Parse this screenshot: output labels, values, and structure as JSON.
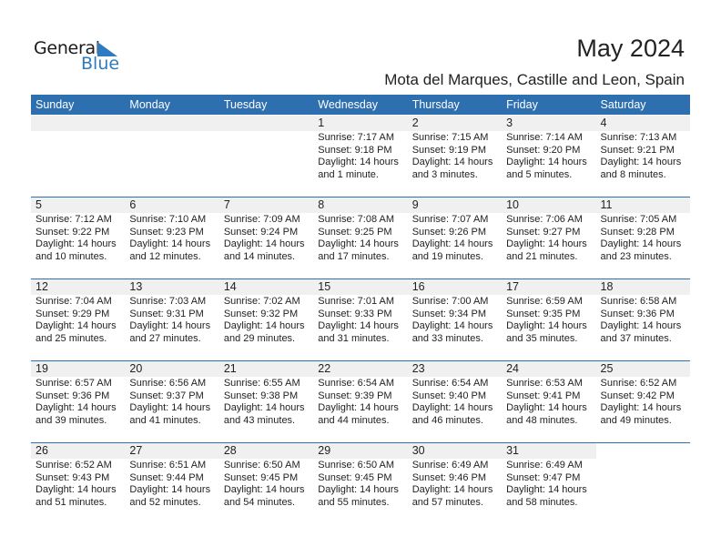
{
  "logo": {
    "text_general": "General",
    "text_blue": "Blue"
  },
  "header": {
    "title": "May 2024",
    "subtitle": "Mota del Marques, Castille and Leon, Spain"
  },
  "colors": {
    "header_bg": "#2e6fb0",
    "day_band": "#f0f0f0",
    "logo_blue": "#2e7bbf"
  },
  "weekdays": [
    "Sunday",
    "Monday",
    "Tuesday",
    "Wednesday",
    "Thursday",
    "Friday",
    "Saturday"
  ],
  "weeks": [
    [
      null,
      null,
      null,
      {
        "day": "1",
        "sunrise": "Sunrise: 7:17 AM",
        "sunset": "Sunset: 9:18 PM",
        "daylight1": "Daylight: 14 hours",
        "daylight2": "and 1 minute."
      },
      {
        "day": "2",
        "sunrise": "Sunrise: 7:15 AM",
        "sunset": "Sunset: 9:19 PM",
        "daylight1": "Daylight: 14 hours",
        "daylight2": "and 3 minutes."
      },
      {
        "day": "3",
        "sunrise": "Sunrise: 7:14 AM",
        "sunset": "Sunset: 9:20 PM",
        "daylight1": "Daylight: 14 hours",
        "daylight2": "and 5 minutes."
      },
      {
        "day": "4",
        "sunrise": "Sunrise: 7:13 AM",
        "sunset": "Sunset: 9:21 PM",
        "daylight1": "Daylight: 14 hours",
        "daylight2": "and 8 minutes."
      }
    ],
    [
      {
        "day": "5",
        "sunrise": "Sunrise: 7:12 AM",
        "sunset": "Sunset: 9:22 PM",
        "daylight1": "Daylight: 14 hours",
        "daylight2": "and 10 minutes."
      },
      {
        "day": "6",
        "sunrise": "Sunrise: 7:10 AM",
        "sunset": "Sunset: 9:23 PM",
        "daylight1": "Daylight: 14 hours",
        "daylight2": "and 12 minutes."
      },
      {
        "day": "7",
        "sunrise": "Sunrise: 7:09 AM",
        "sunset": "Sunset: 9:24 PM",
        "daylight1": "Daylight: 14 hours",
        "daylight2": "and 14 minutes."
      },
      {
        "day": "8",
        "sunrise": "Sunrise: 7:08 AM",
        "sunset": "Sunset: 9:25 PM",
        "daylight1": "Daylight: 14 hours",
        "daylight2": "and 17 minutes."
      },
      {
        "day": "9",
        "sunrise": "Sunrise: 7:07 AM",
        "sunset": "Sunset: 9:26 PM",
        "daylight1": "Daylight: 14 hours",
        "daylight2": "and 19 minutes."
      },
      {
        "day": "10",
        "sunrise": "Sunrise: 7:06 AM",
        "sunset": "Sunset: 9:27 PM",
        "daylight1": "Daylight: 14 hours",
        "daylight2": "and 21 minutes."
      },
      {
        "day": "11",
        "sunrise": "Sunrise: 7:05 AM",
        "sunset": "Sunset: 9:28 PM",
        "daylight1": "Daylight: 14 hours",
        "daylight2": "and 23 minutes."
      }
    ],
    [
      {
        "day": "12",
        "sunrise": "Sunrise: 7:04 AM",
        "sunset": "Sunset: 9:29 PM",
        "daylight1": "Daylight: 14 hours",
        "daylight2": "and 25 minutes."
      },
      {
        "day": "13",
        "sunrise": "Sunrise: 7:03 AM",
        "sunset": "Sunset: 9:31 PM",
        "daylight1": "Daylight: 14 hours",
        "daylight2": "and 27 minutes."
      },
      {
        "day": "14",
        "sunrise": "Sunrise: 7:02 AM",
        "sunset": "Sunset: 9:32 PM",
        "daylight1": "Daylight: 14 hours",
        "daylight2": "and 29 minutes."
      },
      {
        "day": "15",
        "sunrise": "Sunrise: 7:01 AM",
        "sunset": "Sunset: 9:33 PM",
        "daylight1": "Daylight: 14 hours",
        "daylight2": "and 31 minutes."
      },
      {
        "day": "16",
        "sunrise": "Sunrise: 7:00 AM",
        "sunset": "Sunset: 9:34 PM",
        "daylight1": "Daylight: 14 hours",
        "daylight2": "and 33 minutes."
      },
      {
        "day": "17",
        "sunrise": "Sunrise: 6:59 AM",
        "sunset": "Sunset: 9:35 PM",
        "daylight1": "Daylight: 14 hours",
        "daylight2": "and 35 minutes."
      },
      {
        "day": "18",
        "sunrise": "Sunrise: 6:58 AM",
        "sunset": "Sunset: 9:36 PM",
        "daylight1": "Daylight: 14 hours",
        "daylight2": "and 37 minutes."
      }
    ],
    [
      {
        "day": "19",
        "sunrise": "Sunrise: 6:57 AM",
        "sunset": "Sunset: 9:36 PM",
        "daylight1": "Daylight: 14 hours",
        "daylight2": "and 39 minutes."
      },
      {
        "day": "20",
        "sunrise": "Sunrise: 6:56 AM",
        "sunset": "Sunset: 9:37 PM",
        "daylight1": "Daylight: 14 hours",
        "daylight2": "and 41 minutes."
      },
      {
        "day": "21",
        "sunrise": "Sunrise: 6:55 AM",
        "sunset": "Sunset: 9:38 PM",
        "daylight1": "Daylight: 14 hours",
        "daylight2": "and 43 minutes."
      },
      {
        "day": "22",
        "sunrise": "Sunrise: 6:54 AM",
        "sunset": "Sunset: 9:39 PM",
        "daylight1": "Daylight: 14 hours",
        "daylight2": "and 44 minutes."
      },
      {
        "day": "23",
        "sunrise": "Sunrise: 6:54 AM",
        "sunset": "Sunset: 9:40 PM",
        "daylight1": "Daylight: 14 hours",
        "daylight2": "and 46 minutes."
      },
      {
        "day": "24",
        "sunrise": "Sunrise: 6:53 AM",
        "sunset": "Sunset: 9:41 PM",
        "daylight1": "Daylight: 14 hours",
        "daylight2": "and 48 minutes."
      },
      {
        "day": "25",
        "sunrise": "Sunrise: 6:52 AM",
        "sunset": "Sunset: 9:42 PM",
        "daylight1": "Daylight: 14 hours",
        "daylight2": "and 49 minutes."
      }
    ],
    [
      {
        "day": "26",
        "sunrise": "Sunrise: 6:52 AM",
        "sunset": "Sunset: 9:43 PM",
        "daylight1": "Daylight: 14 hours",
        "daylight2": "and 51 minutes."
      },
      {
        "day": "27",
        "sunrise": "Sunrise: 6:51 AM",
        "sunset": "Sunset: 9:44 PM",
        "daylight1": "Daylight: 14 hours",
        "daylight2": "and 52 minutes."
      },
      {
        "day": "28",
        "sunrise": "Sunrise: 6:50 AM",
        "sunset": "Sunset: 9:45 PM",
        "daylight1": "Daylight: 14 hours",
        "daylight2": "and 54 minutes."
      },
      {
        "day": "29",
        "sunrise": "Sunrise: 6:50 AM",
        "sunset": "Sunset: 9:45 PM",
        "daylight1": "Daylight: 14 hours",
        "daylight2": "and 55 minutes."
      },
      {
        "day": "30",
        "sunrise": "Sunrise: 6:49 AM",
        "sunset": "Sunset: 9:46 PM",
        "daylight1": "Daylight: 14 hours",
        "daylight2": "and 57 minutes."
      },
      {
        "day": "31",
        "sunrise": "Sunrise: 6:49 AM",
        "sunset": "Sunset: 9:47 PM",
        "daylight1": "Daylight: 14 hours",
        "daylight2": "and 58 minutes."
      },
      null
    ]
  ]
}
